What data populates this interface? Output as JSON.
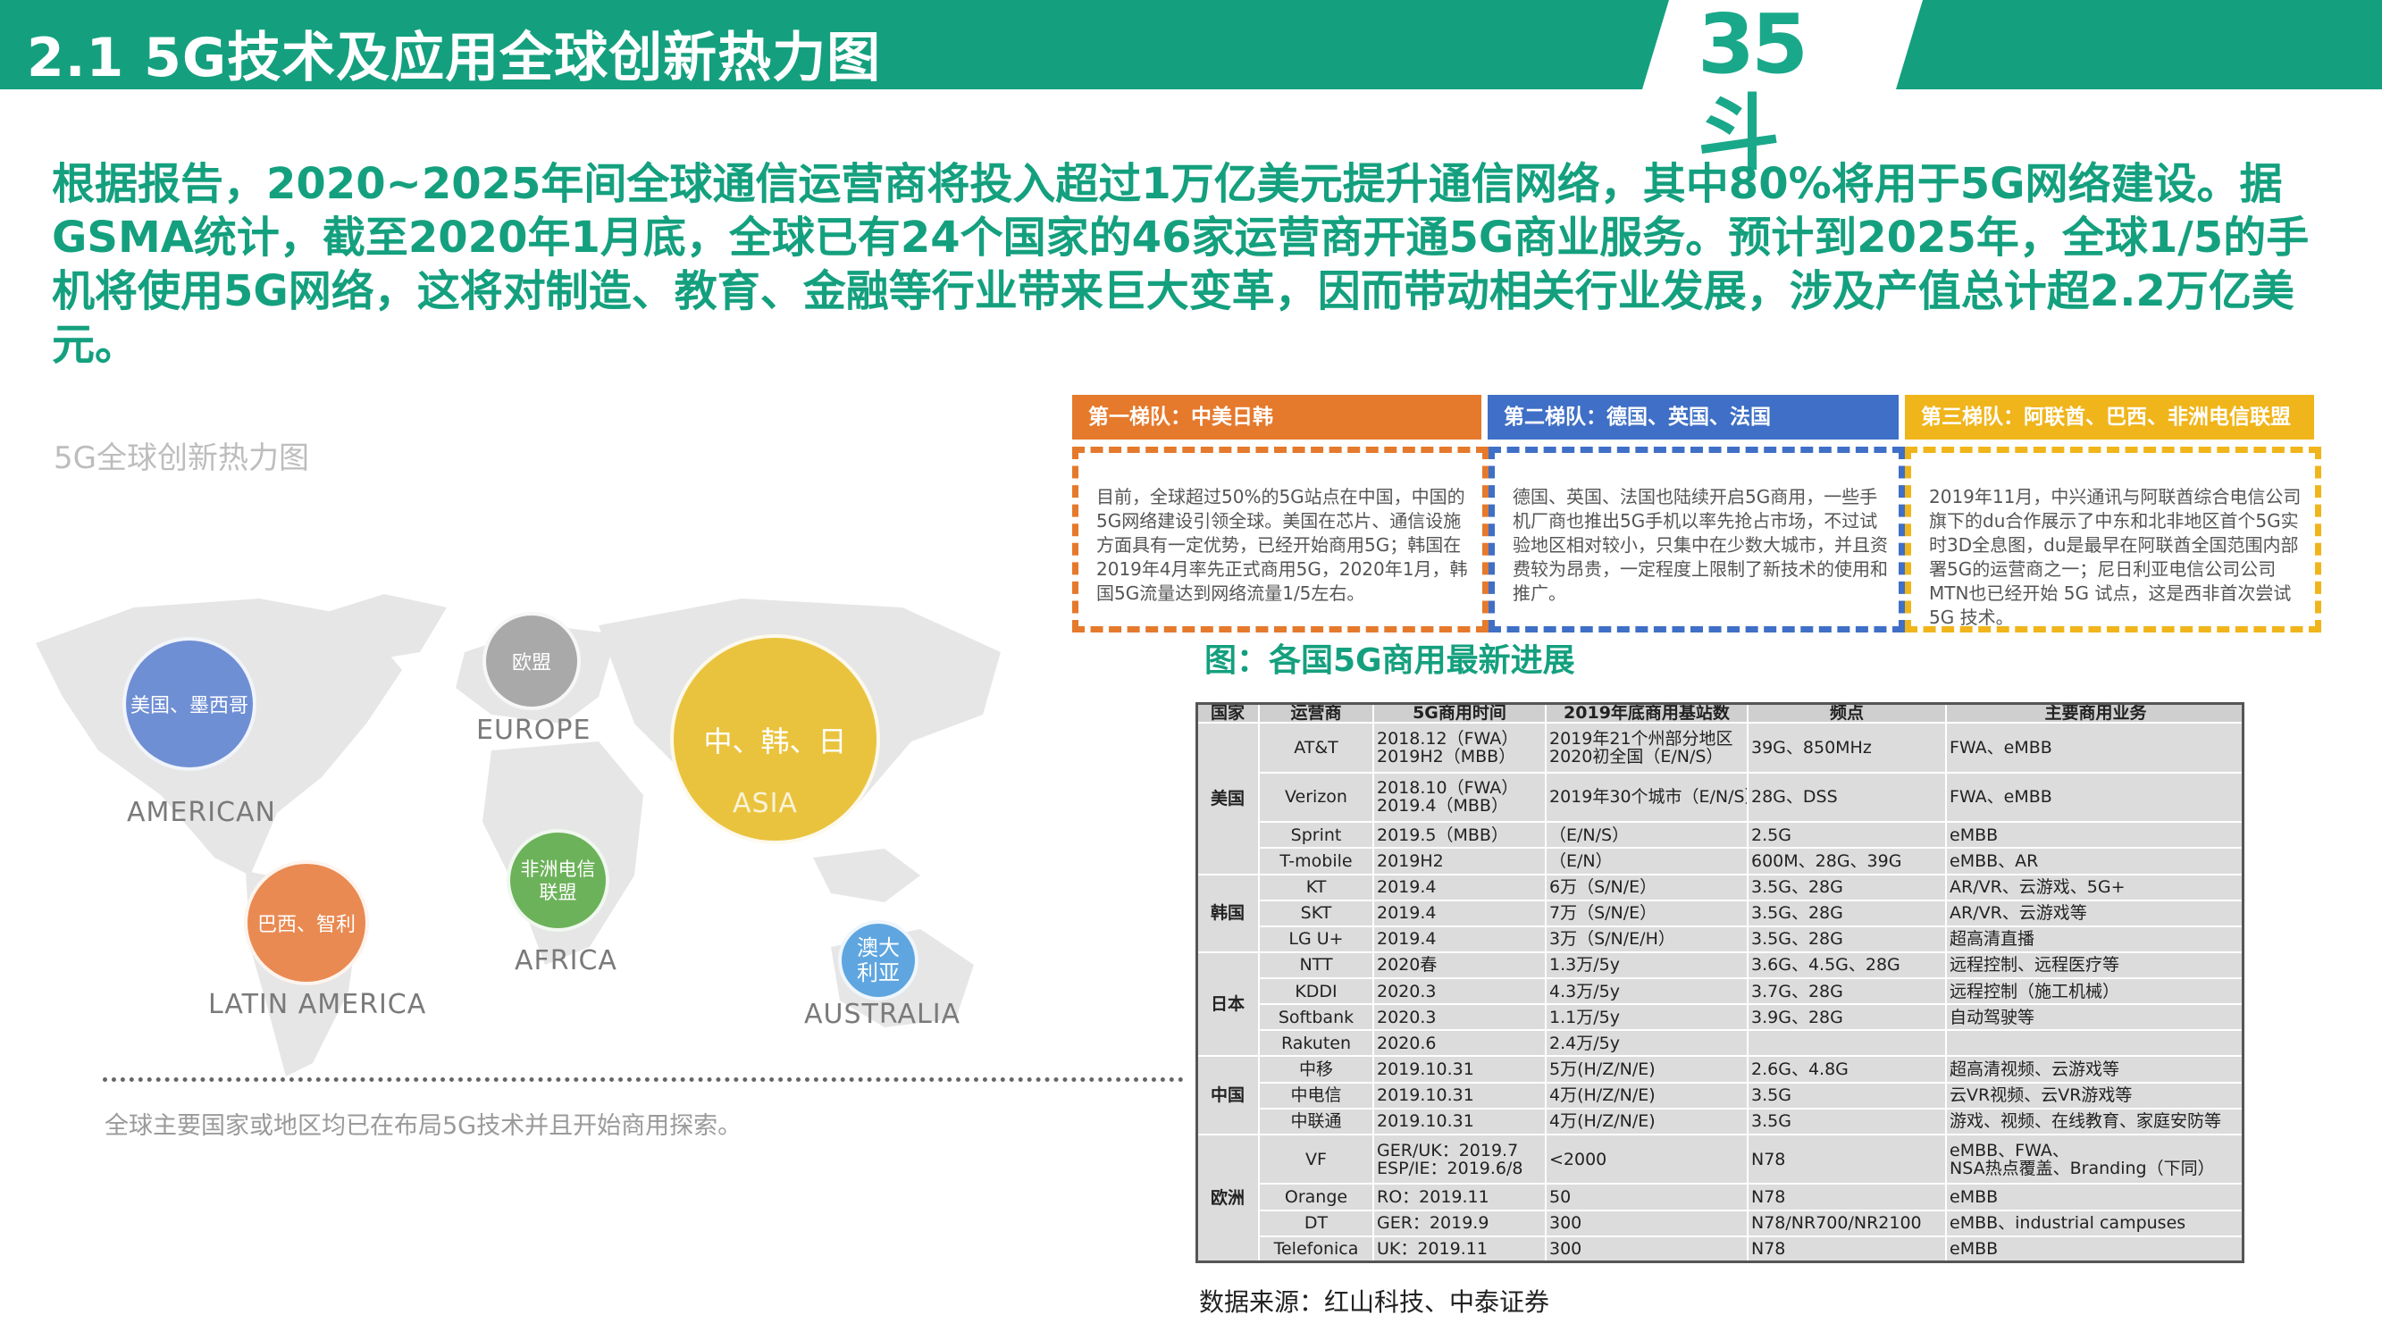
{
  "header": {
    "title": "2.1 5G技术及应用全球创新热力图",
    "logo": "35斗"
  },
  "intro": "根据报告，2020~2025年间全球通信运营商将投入超过1万亿美元提升通信网络，其中80%将用于5G网络建设。据GSMA统计，截至2020年1月底，全球已有24个国家的46家运营商开通5G商业服务。预计到2025年，全球1/5的手机将使用5G网络，这将对制造、教育、金融等行业带来巨大变革，因而带动相关行业发展，涉及产值总计超2.2万亿美元。",
  "map": {
    "title": "5G全球创新热力图",
    "bubbles": [
      {
        "label": "美国、墨西哥",
        "region": "AMERICAN",
        "color": "#6f8fd4"
      },
      {
        "label": "欧盟",
        "region": "EUROPE",
        "color": "#a9a9a9"
      },
      {
        "label": "中、韩、日",
        "region": "ASIA",
        "color": "#eac33e"
      },
      {
        "label": "非洲电信联盟",
        "region": "AFRICA",
        "color": "#6cb25a"
      },
      {
        "label": "巴西、智利",
        "region": "LATIN AMERICA",
        "color": "#e98a52"
      },
      {
        "label": "澳大利亚",
        "region": "AUSTRALIA",
        "color": "#5fa6e0"
      }
    ],
    "note": "全球主要国家或地区均已在布局5G技术并且开始商用探索。"
  },
  "tiers": [
    {
      "title": "第一梯队：中美日韩",
      "color": "#e5792c",
      "body": "目前，全球超过50%的5G站点在中国，中国的5G网络建设引领全球。美国在芯片、通信设施方面具有一定优势，已经开始商用5G；韩国在2019年4月率先正式商用5G，2020年1月，韩国5G流量达到网络流量1/5左右。"
    },
    {
      "title": "第二梯队：德国、英国、法国",
      "color": "#3f6fc6",
      "body": "德国、英国、法国也陆续开启5G商用，一些手机厂商也推出5G手机以率先抢占市场，不过试验地区相对较小，只集中在少数大城市，并且资费较为昂贵，一定程度上限制了新技术的使用和推广。"
    },
    {
      "title": "第三梯队：阿联酋、巴西、非洲电信联盟",
      "color": "#f0b51b",
      "body": "2019年11月，中兴通讯与阿联酋综合电信公司旗下的du合作展示了中东和北非地区首个5G实时3D全息图，du是最早在阿联酋全国范围内部署5G的运营商之一；尼日利亚电信公司公司MTN也已经开始 5G 试点，这是西非首次尝试 5G 技术。"
    }
  ],
  "table": {
    "caption": "图：各国5G商用最新进展",
    "headers": [
      "国家",
      "运营商",
      "5G商用时间",
      "2019年底商用基站数",
      "频点",
      "主要商用业务"
    ],
    "groups": [
      {
        "country": "美国",
        "rows": [
          [
            "AT&T",
            "2018.12（FWA）\n2019H2（MBB）",
            "2019年21个州部分地区\n2020初全国（E/N/S）",
            "39G、850MHz",
            "FWA、eMBB"
          ],
          [
            "Verizon",
            "2018.10（FWA）\n2019.4（MBB）",
            "2019年30个城市（E/N/S）",
            "28G、DSS",
            "FWA、eMBB"
          ],
          [
            "Sprint",
            "2019.5（MBB）",
            "（E/N/S）",
            "2.5G",
            "eMBB"
          ],
          [
            "T-mobile",
            "2019H2",
            "（E/N）",
            "600M、28G、39G",
            "eMBB、AR"
          ]
        ]
      },
      {
        "country": "韩国",
        "rows": [
          [
            "KT",
            "2019.4",
            "6万（S/N/E）",
            "3.5G、28G",
            "AR/VR、云游戏、5G+"
          ],
          [
            "SKT",
            "2019.4",
            "7万（S/N/E）",
            "3.5G、28G",
            "AR/VR、云游戏等"
          ],
          [
            "LG U+",
            "2019.4",
            "3万（S/N/E/H）",
            "3.5G、28G",
            "超高清直播"
          ]
        ]
      },
      {
        "country": "日本",
        "rows": [
          [
            "NTT",
            "2020春",
            "1.3万/5y",
            "3.6G、4.5G、28G",
            "远程控制、远程医疗等"
          ],
          [
            "KDDI",
            "2020.3",
            "4.3万/5y",
            "3.7G、28G",
            "远程控制（施工机械）"
          ],
          [
            "Softbank",
            "2020.3",
            "1.1万/5y",
            "3.9G、28G",
            "自动驾驶等"
          ],
          [
            "Rakuten",
            "2020.6",
            "2.4万/5y",
            "",
            ""
          ]
        ]
      },
      {
        "country": "中国",
        "rows": [
          [
            "中移",
            "2019.10.31",
            "5万(H/Z/N/E)",
            "2.6G、4.8G",
            "超高清视频、云游戏等"
          ],
          [
            "中电信",
            "2019.10.31",
            "4万(H/Z/N/E)",
            "3.5G",
            "云VR视频、云VR游戏等"
          ],
          [
            "中联通",
            "2019.10.31",
            "4万(H/Z/N/E)",
            "3.5G",
            "游戏、视频、在线教育、家庭安防等"
          ]
        ]
      },
      {
        "country": "欧洲",
        "rows": [
          [
            "VF",
            "GER/UK：2019.7\nESP/IE：2019.6/8",
            "<2000",
            "N78",
            "eMBB、FWA、\nNSA热点覆盖、Branding（下同）"
          ],
          [
            "Orange",
            "RO：2019.11",
            "50",
            "N78",
            "eMBB"
          ],
          [
            "DT",
            "GER：2019.9",
            "300",
            "N78/NR700/NR2100",
            "eMBB、industrial campuses"
          ],
          [
            "Telefonica",
            "UK：2019.11",
            "300",
            "N78",
            "eMBB"
          ]
        ]
      }
    ]
  },
  "source": "数据来源：红山科技、中泰证券",
  "colors": {
    "brand_green": "#14a07e"
  }
}
